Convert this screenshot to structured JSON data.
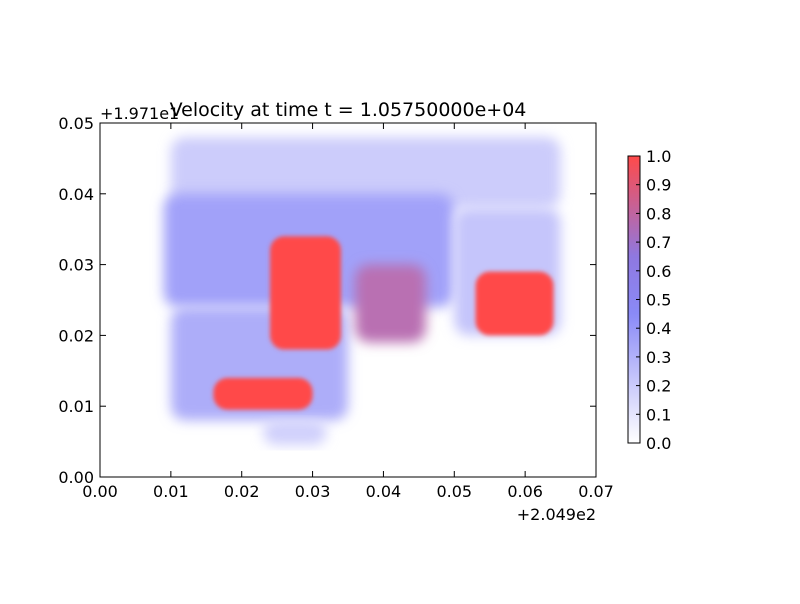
{
  "chart_data": {
    "type": "heatmap",
    "title": "Velocity at time t = 1.05750000e+04",
    "xlabel": "",
    "ylabel": "",
    "xlim": [
      0.0,
      0.07
    ],
    "ylim": [
      0.0,
      0.05
    ],
    "x_ticks": [
      "0.00",
      "0.01",
      "0.02",
      "0.03",
      "0.04",
      "0.05",
      "0.06",
      "0.07"
    ],
    "y_ticks": [
      "0.00",
      "0.01",
      "0.02",
      "0.03",
      "0.04",
      "0.05"
    ],
    "x_offset_label": "+2.049e2",
    "y_offset_label": "+1.971e1",
    "colorbar": {
      "range": [
        0.0,
        1.0
      ],
      "ticks": [
        "0.0",
        "0.1",
        "0.2",
        "0.3",
        "0.4",
        "0.5",
        "0.6",
        "0.7",
        "0.8",
        "0.9",
        "1.0"
      ],
      "colors": [
        "#ffffff",
        "#8a8af7",
        "#ff4a4a"
      ]
    },
    "regions": [
      {
        "x": [
          0.01,
          0.065
        ],
        "y": [
          0.038,
          0.048
        ],
        "level": 0.22
      },
      {
        "x": [
          0.009,
          0.05
        ],
        "y": [
          0.024,
          0.04
        ],
        "level": 0.4
      },
      {
        "x": [
          0.05,
          0.065
        ],
        "y": [
          0.02,
          0.038
        ],
        "level": 0.25
      },
      {
        "x": [
          0.01,
          0.035
        ],
        "y": [
          0.008,
          0.024
        ],
        "level": 0.35
      },
      {
        "x": [
          0.023,
          0.032
        ],
        "y": [
          0.0045,
          0.008
        ],
        "level": 0.2
      },
      {
        "x": [
          0.024,
          0.034
        ],
        "y": [
          0.018,
          0.034
        ],
        "level": 1.0
      },
      {
        "x": [
          0.016,
          0.03
        ],
        "y": [
          0.0095,
          0.014
        ],
        "level": 1.0
      },
      {
        "x": [
          0.053,
          0.064
        ],
        "y": [
          0.02,
          0.029
        ],
        "level": 1.0
      },
      {
        "x": [
          0.036,
          0.046
        ],
        "y": [
          0.019,
          0.03
        ],
        "level": 0.7
      }
    ]
  }
}
